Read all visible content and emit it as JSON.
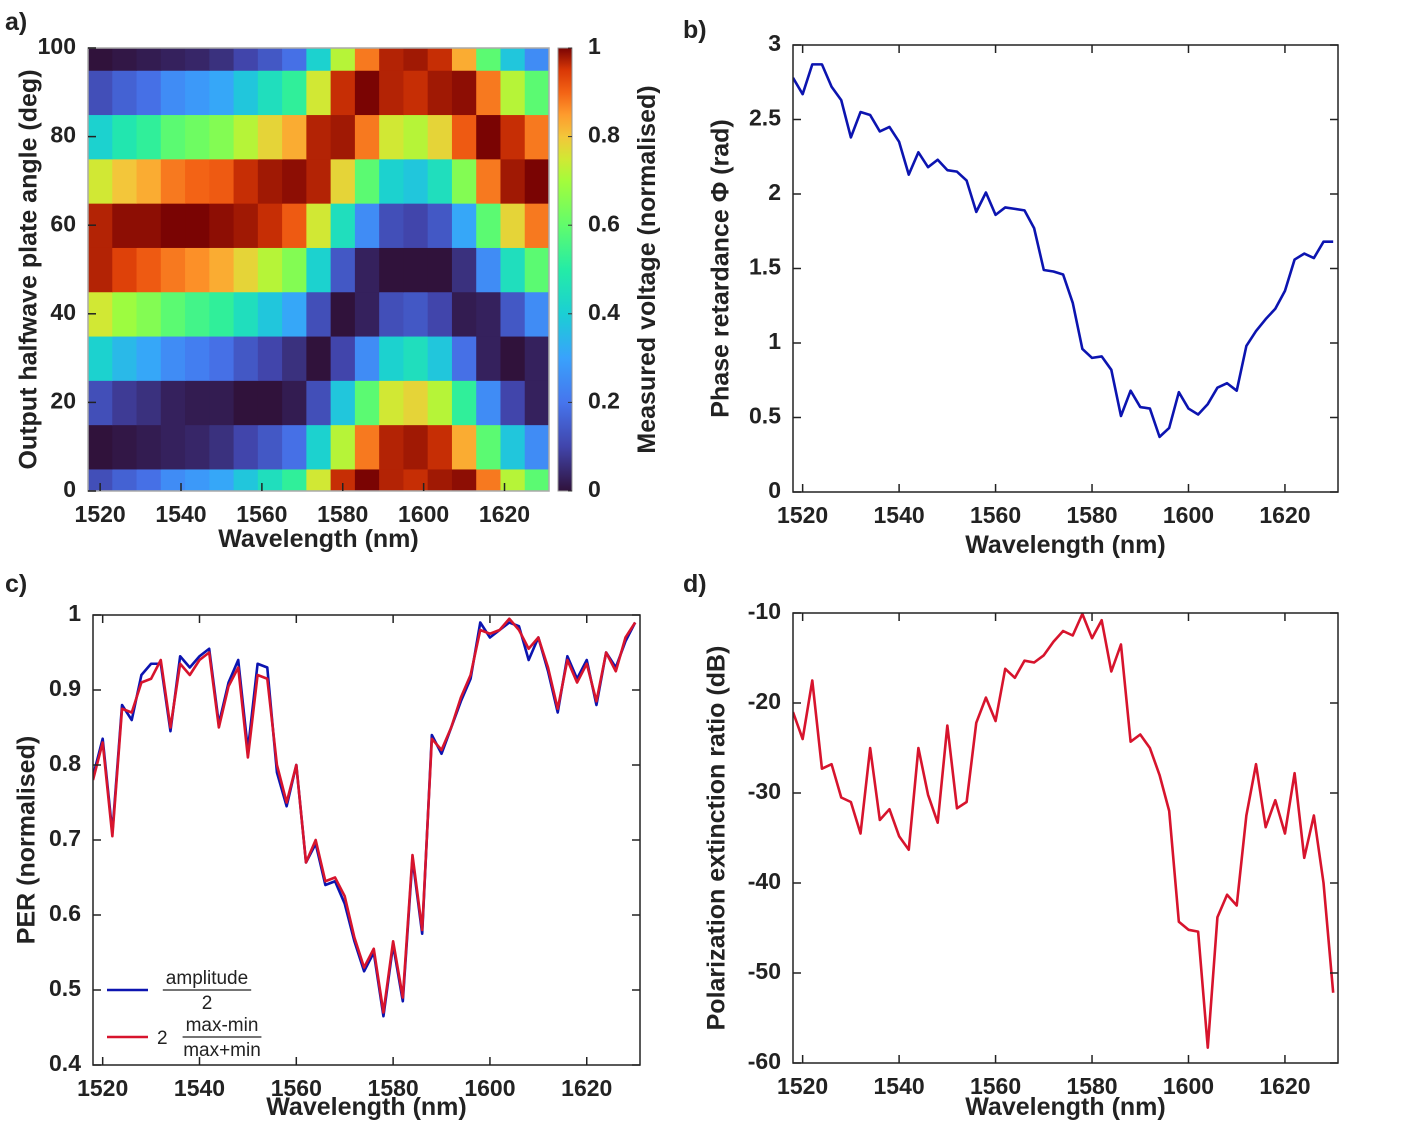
{
  "chart_data": [
    {
      "type": "heatmap",
      "label": "a)",
      "xlabel": "Wavelength (nm)",
      "ylabel": "Output halfwave plate angle (deg)",
      "xlim": [
        1517,
        1631
      ],
      "ylim": [
        0,
        100
      ],
      "xticks": [
        1520,
        1540,
        1560,
        1580,
        1600,
        1620
      ],
      "yticks": [
        0,
        20,
        40,
        60,
        80,
        100
      ],
      "x": [
        1520,
        1526,
        1532,
        1538,
        1544,
        1550,
        1556,
        1562,
        1568,
        1574,
        1580,
        1586,
        1592,
        1598,
        1604,
        1610,
        1616,
        1622,
        1628
      ],
      "y": [
        0,
        10,
        20,
        30,
        40,
        50,
        60,
        70,
        80,
        90,
        100
      ],
      "z": [
        [
          0.12,
          0.16,
          0.19,
          0.25,
          0.28,
          0.31,
          0.38,
          0.45,
          0.52,
          0.75,
          0.96,
          1,
          0.97,
          0.96,
          0.98,
          0.99,
          0.88,
          0.72,
          0.59
        ],
        [
          0,
          0.01,
          0.02,
          0.03,
          0.04,
          0.06,
          0.1,
          0.14,
          0.19,
          0.41,
          0.72,
          0.88,
          0.97,
          0.98,
          0.96,
          0.83,
          0.59,
          0.38,
          0.25
        ],
        [
          0.12,
          0.08,
          0.06,
          0.03,
          0.02,
          0.02,
          0,
          0,
          0.02,
          0.12,
          0.38,
          0.59,
          0.75,
          0.78,
          0.72,
          0.52,
          0.25,
          0.1,
          0.03
        ],
        [
          0.41,
          0.35,
          0.31,
          0.25,
          0.22,
          0.19,
          0.14,
          0.1,
          0.06,
          0,
          0.1,
          0.25,
          0.41,
          0.45,
          0.38,
          0.19,
          0.03,
          0,
          0.03
        ],
        [
          0.75,
          0.69,
          0.65,
          0.59,
          0.55,
          0.52,
          0.45,
          0.38,
          0.31,
          0.12,
          0,
          0.03,
          0.12,
          0.14,
          0.1,
          0.02,
          0.03,
          0.14,
          0.25
        ],
        [
          0.97,
          0.94,
          0.91,
          0.88,
          0.86,
          0.83,
          0.78,
          0.72,
          0.65,
          0.41,
          0.14,
          0.03,
          0,
          0,
          0,
          0.06,
          0.25,
          0.45,
          0.59
        ],
        [
          0.97,
          0.99,
          0.99,
          1,
          1,
          0.99,
          0.98,
          0.96,
          0.91,
          0.75,
          0.45,
          0.25,
          0.12,
          0.1,
          0.14,
          0.31,
          0.59,
          0.78,
          0.88
        ],
        [
          0.75,
          0.8,
          0.83,
          0.88,
          0.9,
          0.91,
          0.96,
          0.98,
          0.99,
          0.97,
          0.78,
          0.59,
          0.41,
          0.38,
          0.45,
          0.65,
          0.88,
          0.98,
          1
        ],
        [
          0.41,
          0.48,
          0.52,
          0.59,
          0.62,
          0.65,
          0.72,
          0.78,
          0.83,
          0.97,
          0.98,
          0.88,
          0.75,
          0.72,
          0.78,
          0.91,
          1,
          0.96,
          0.88
        ],
        [
          0.12,
          0.16,
          0.19,
          0.25,
          0.28,
          0.31,
          0.38,
          0.45,
          0.52,
          0.75,
          0.96,
          1,
          0.97,
          0.96,
          0.98,
          0.99,
          0.88,
          0.72,
          0.59
        ],
        [
          0,
          0.01,
          0.02,
          0.03,
          0.04,
          0.06,
          0.1,
          0.14,
          0.19,
          0.41,
          0.72,
          0.88,
          0.97,
          0.98,
          0.96,
          0.83,
          0.59,
          0.38,
          0.25
        ]
      ],
      "colormap": [
        [
          0,
          "#30123b"
        ],
        [
          0.1,
          "#4145ab"
        ],
        [
          0.2,
          "#4675ed"
        ],
        [
          0.3,
          "#39a2fc"
        ],
        [
          0.4,
          "#1bcfd4"
        ],
        [
          0.5,
          "#24eca6"
        ],
        [
          0.6,
          "#61fc6c"
        ],
        [
          0.7,
          "#a4fc3b"
        ],
        [
          0.75,
          "#d1e834"
        ],
        [
          0.8,
          "#f3c63a"
        ],
        [
          0.85,
          "#fe9b2d"
        ],
        [
          0.9,
          "#f36315"
        ],
        [
          0.95,
          "#d93806"
        ],
        [
          1,
          "#7a0403"
        ]
      ],
      "colorbar": {
        "label": "Measured voltage (normalised)",
        "lim": [
          0,
          1
        ],
        "ticks": [
          0,
          0.2,
          0.4,
          0.6,
          0.8,
          1
        ]
      }
    },
    {
      "type": "line",
      "label": "b)",
      "xlabel": "Wavelength (nm)",
      "ylabel": "Phase retardance Φ (rad)",
      "xlim": [
        1518,
        1631
      ],
      "ylim": [
        0,
        3
      ],
      "xticks": [
        1520,
        1540,
        1560,
        1580,
        1600,
        1620
      ],
      "yticks": [
        0,
        0.5,
        1,
        1.5,
        2,
        2.5,
        3
      ],
      "x": [
        1518,
        1520,
        1522,
        1524,
        1526,
        1528,
        1530,
        1532,
        1534,
        1536,
        1538,
        1540,
        1542,
        1544,
        1546,
        1548,
        1550,
        1552,
        1554,
        1556,
        1558,
        1560,
        1562,
        1564,
        1566,
        1568,
        1570,
        1572,
        1574,
        1576,
        1578,
        1580,
        1582,
        1584,
        1586,
        1588,
        1590,
        1592,
        1594,
        1596,
        1598,
        1600,
        1602,
        1604,
        1606,
        1608,
        1610,
        1612,
        1614,
        1616,
        1618,
        1620,
        1622,
        1624,
        1626,
        1628,
        1630
      ],
      "series": [
        {
          "color": "#0c14b0",
          "values": [
            2.78,
            2.67,
            2.87,
            2.87,
            2.72,
            2.63,
            2.38,
            2.55,
            2.53,
            2.42,
            2.45,
            2.35,
            2.13,
            2.28,
            2.18,
            2.23,
            2.16,
            2.15,
            2.09,
            1.88,
            2.01,
            1.86,
            1.91,
            1.9,
            1.89,
            1.77,
            1.49,
            1.48,
            1.46,
            1.27,
            0.96,
            0.9,
            0.91,
            0.82,
            0.51,
            0.68,
            0.57,
            0.56,
            0.37,
            0.43,
            0.67,
            0.56,
            0.52,
            0.59,
            0.7,
            0.73,
            0.68,
            0.98,
            1.08,
            1.16,
            1.23,
            1.35,
            1.56,
            1.6,
            1.57,
            1.68,
            1.68
          ]
        }
      ]
    },
    {
      "type": "line",
      "label": "c)",
      "xlabel": "Wavelength (nm)",
      "ylabel": "PER (normalised)",
      "xlim": [
        1518,
        1631
      ],
      "ylim": [
        0.4,
        1
      ],
      "xticks": [
        1520,
        1540,
        1560,
        1580,
        1600,
        1620
      ],
      "yticks": [
        0.4,
        0.5,
        0.6,
        0.7,
        0.8,
        0.9,
        1
      ],
      "legend": "lower left",
      "x": [
        1518,
        1520,
        1522,
        1524,
        1526,
        1528,
        1530,
        1532,
        1534,
        1536,
        1538,
        1540,
        1542,
        1544,
        1546,
        1548,
        1550,
        1552,
        1554,
        1556,
        1558,
        1560,
        1562,
        1564,
        1566,
        1568,
        1570,
        1572,
        1574,
        1576,
        1578,
        1580,
        1582,
        1584,
        1586,
        1588,
        1590,
        1592,
        1594,
        1596,
        1598,
        1600,
        1602,
        1604,
        1606,
        1608,
        1610,
        1612,
        1614,
        1616,
        1618,
        1620,
        1622,
        1624,
        1626,
        1628,
        1630
      ],
      "series": [
        {
          "label": {
            "numerator": "amplitude",
            "denominator": "2"
          },
          "color": "#0c14b0",
          "values": [
            0.785,
            0.835,
            0.71,
            0.88,
            0.86,
            0.92,
            0.935,
            0.935,
            0.845,
            0.945,
            0.93,
            0.945,
            0.955,
            0.855,
            0.91,
            0.94,
            0.82,
            0.935,
            0.93,
            0.79,
            0.745,
            0.8,
            0.67,
            0.695,
            0.64,
            0.645,
            0.615,
            0.565,
            0.525,
            0.55,
            0.465,
            0.56,
            0.485,
            0.675,
            0.575,
            0.84,
            0.815,
            0.85,
            0.885,
            0.915,
            0.99,
            0.97,
            0.98,
            0.99,
            0.985,
            0.94,
            0.97,
            0.925,
            0.87,
            0.945,
            0.915,
            0.94,
            0.88,
            0.95,
            0.93,
            0.965,
            0.99
          ]
        },
        {
          "label": {
            "prefix": "2",
            "numerator": "max-min",
            "denominator": "max+min"
          },
          "color": "#d7142d",
          "values": [
            0.78,
            0.83,
            0.705,
            0.875,
            0.87,
            0.91,
            0.915,
            0.94,
            0.85,
            0.935,
            0.92,
            0.94,
            0.95,
            0.85,
            0.905,
            0.93,
            0.81,
            0.92,
            0.915,
            0.8,
            0.75,
            0.8,
            0.67,
            0.7,
            0.645,
            0.65,
            0.625,
            0.57,
            0.53,
            0.555,
            0.47,
            0.565,
            0.49,
            0.68,
            0.58,
            0.835,
            0.82,
            0.85,
            0.89,
            0.92,
            0.98,
            0.975,
            0.98,
            0.995,
            0.98,
            0.955,
            0.97,
            0.93,
            0.875,
            0.94,
            0.91,
            0.935,
            0.885,
            0.95,
            0.925,
            0.97,
            0.99
          ]
        }
      ]
    },
    {
      "type": "line",
      "label": "d)",
      "xlabel": "Wavelength (nm)",
      "ylabel": "Polarization extinction ratio (dB)",
      "xlim": [
        1518,
        1631
      ],
      "ylim": [
        -60,
        -10
      ],
      "xticks": [
        1520,
        1540,
        1560,
        1580,
        1600,
        1620
      ],
      "yticks": [
        -60,
        -50,
        -40,
        -30,
        -20,
        -10
      ],
      "x": [
        1518,
        1520,
        1522,
        1524,
        1526,
        1528,
        1530,
        1532,
        1534,
        1536,
        1538,
        1540,
        1542,
        1544,
        1546,
        1548,
        1550,
        1552,
        1554,
        1556,
        1558,
        1560,
        1562,
        1564,
        1566,
        1568,
        1570,
        1572,
        1574,
        1576,
        1578,
        1580,
        1582,
        1584,
        1586,
        1588,
        1590,
        1592,
        1594,
        1596,
        1598,
        1600,
        1602,
        1604,
        1606,
        1608,
        1610,
        1612,
        1614,
        1616,
        1618,
        1620,
        1622,
        1624,
        1626,
        1628,
        1630
      ],
      "series": [
        {
          "color": "#d7142d",
          "values": [
            -21,
            -24,
            -17.5,
            -27.3,
            -26.8,
            -30.5,
            -31,
            -34.5,
            -25,
            -33,
            -31.8,
            -34.8,
            -36.3,
            -25,
            -30.2,
            -33.3,
            -22.5,
            -31.7,
            -31,
            -22.2,
            -19.4,
            -22,
            -16.2,
            -17.2,
            -15.3,
            -15.5,
            -14.7,
            -13.2,
            -12,
            -12.5,
            -10.1,
            -12.8,
            -10.8,
            -16.5,
            -13.5,
            -24.3,
            -23.5,
            -25,
            -28,
            -32,
            -44.3,
            -45.2,
            -45.4,
            -58.3,
            -43.8,
            -41.3,
            -42.5,
            -32.5,
            -26.8,
            -33.8,
            -30.8,
            -34.5,
            -27.8,
            -37.2,
            -32.5,
            -40,
            -52.2
          ]
        }
      ]
    }
  ]
}
